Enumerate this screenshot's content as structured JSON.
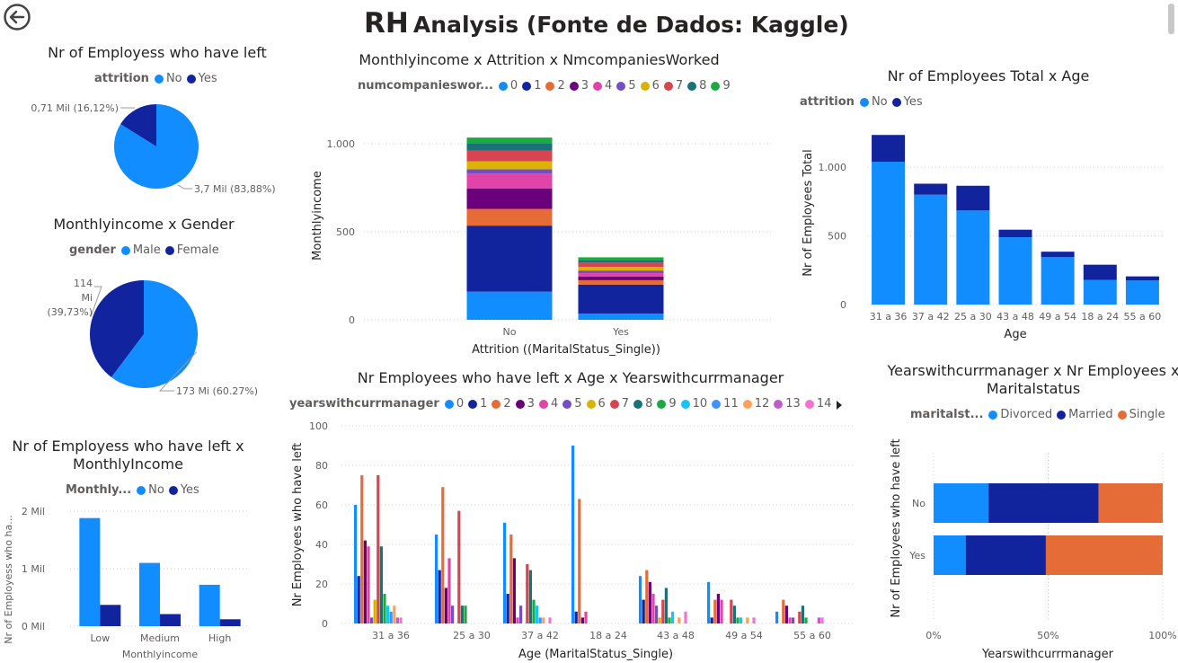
{
  "page": {
    "title_prefix": "RH",
    "title_rest": "Analysis (Fonte de Dados: Kaggle)"
  },
  "colors": {
    "c0": "#118DFF",
    "c1": "#12239E",
    "c2": "#E66C37",
    "c3": "#6B007B",
    "c4": "#E044A7",
    "c5": "#744EC2",
    "c6": "#D9B300",
    "c7": "#D64550",
    "c8": "#197278",
    "c9": "#1AAB40",
    "c10": "#15C6F4",
    "c11": "#4092FF",
    "c12": "#FFA058",
    "c13": "#BE5DC9",
    "c14": "#F472D0"
  },
  "chart_data": [
    {
      "id": "pie_attrition",
      "type": "pie",
      "title": "Nr of Employess who have left",
      "legend_title": "attrition",
      "slices": [
        {
          "name": "No",
          "value": 83.88,
          "label": "3,7 Mil (83,88%)",
          "color": "#118DFF"
        },
        {
          "name": "Yes",
          "value": 16.12,
          "label": "0,71 Mil (16,12%)",
          "color": "#12239E"
        }
      ]
    },
    {
      "id": "pie_gender",
      "type": "pie",
      "title": "Monthlyincome x Gender",
      "legend_title": "gender",
      "slices": [
        {
          "name": "Male",
          "value": 60.27,
          "label": "173 Mi (60.27%)",
          "color": "#118DFF"
        },
        {
          "name": "Female",
          "value": 39.73,
          "label": "114 Mi (39,73%)",
          "color": "#12239E"
        }
      ]
    },
    {
      "id": "bar_income_level",
      "type": "bar",
      "title": "Nr of Employess who have left x MonthlyIncome",
      "legend_title": "Monthly...",
      "xlabel": "Monthlyincome",
      "ylabel": "Nr of Employess who ha...",
      "categories": [
        "Low",
        "Medium",
        "High"
      ],
      "ylim": [
        0,
        2
      ],
      "yticks": [
        {
          "v": 0,
          "label": "0 Mil"
        },
        {
          "v": 1,
          "label": "1 Mil"
        },
        {
          "v": 2,
          "label": "2 Mil"
        }
      ],
      "series": [
        {
          "name": "No",
          "color": "#118DFF",
          "values": [
            1.88,
            1.1,
            0.72
          ]
        },
        {
          "name": "Yes",
          "color": "#12239E",
          "values": [
            0.37,
            0.21,
            0.12
          ]
        }
      ]
    },
    {
      "id": "stacked_income_attrition",
      "type": "bar",
      "title": "Monthlyincome x Attrition x NmcompaniesWorked",
      "legend_title": "numcompanieswor...",
      "xlabel": "Attrition ((MaritalStatus_Single))",
      "ylabel": "Monthlyincome",
      "categories": [
        "No",
        "Yes"
      ],
      "ylim": [
        0,
        1000
      ],
      "yticks": [
        {
          "v": 0,
          "label": "0"
        },
        {
          "v": 500,
          "label": "500"
        },
        {
          "v": 1000,
          "label": "1.000"
        }
      ],
      "series": [
        {
          "name": "0",
          "color": "#118DFF",
          "values": [
            160,
            35
          ]
        },
        {
          "name": "1",
          "color": "#12239E",
          "values": [
            375,
            165
          ]
        },
        {
          "name": "2",
          "color": "#E66C37",
          "values": [
            95,
            25
          ]
        },
        {
          "name": "3",
          "color": "#6B007B",
          "values": [
            115,
            20
          ]
        },
        {
          "name": "4",
          "color": "#E044A7",
          "values": [
            85,
            20
          ]
        },
        {
          "name": "5",
          "color": "#744EC2",
          "values": [
            25,
            15
          ]
        },
        {
          "name": "6",
          "color": "#D9B300",
          "values": [
            45,
            20
          ]
        },
        {
          "name": "7",
          "color": "#D64550",
          "values": [
            60,
            25
          ]
        },
        {
          "name": "8",
          "color": "#197278",
          "values": [
            40,
            15
          ]
        },
        {
          "name": "9",
          "color": "#1AAB40",
          "values": [
            35,
            15
          ]
        }
      ]
    },
    {
      "id": "bar_age_total",
      "type": "bar",
      "title": "Nr of Employees Total x Age",
      "legend_title": "attrition",
      "xlabel": "Age",
      "ylabel": "Nr of Employees Total",
      "categories": [
        "31 a 36",
        "37 a 42",
        "25 a 30",
        "43 a 48",
        "49 a 54",
        "18 a 24",
        "55 a 60"
      ],
      "ylim": [
        0,
        1400
      ],
      "yticks": [
        {
          "v": 0,
          "label": "0"
        },
        {
          "v": 500,
          "label": "500"
        },
        {
          "v": 1000,
          "label": "1.000"
        }
      ],
      "series": [
        {
          "name": "No",
          "color": "#118DFF",
          "values": [
            1040,
            800,
            685,
            490,
            345,
            180,
            175
          ]
        },
        {
          "name": "Yes",
          "color": "#12239E",
          "values": [
            195,
            80,
            180,
            55,
            40,
            110,
            30
          ]
        }
      ]
    },
    {
      "id": "clustered_age_manager",
      "type": "bar",
      "title": "Nr Employees who have left x Age x Yearswithcurrmanager",
      "legend_title": "yearswithcurrmanager",
      "xlabel": "Age (MaritalStatus_Single)",
      "ylabel": "Nr Employees who have left",
      "categories": [
        "31 a 36",
        "25 a 30",
        "37 a 42",
        "18 a 24",
        "43 a 48",
        "49 a 54",
        "55 a 60"
      ],
      "ylim": [
        0,
        100
      ],
      "yticks": [
        {
          "v": 0,
          "label": "0"
        },
        {
          "v": 20,
          "label": "20"
        },
        {
          "v": 40,
          "label": "40"
        },
        {
          "v": 60,
          "label": "60"
        },
        {
          "v": 80,
          "label": "80"
        },
        {
          "v": 100,
          "label": "100"
        }
      ],
      "series": [
        {
          "name": "0",
          "color": "#118DFF",
          "values": [
            60,
            45,
            51,
            90,
            24,
            21,
            6
          ]
        },
        {
          "name": "1",
          "color": "#12239E",
          "values": [
            24,
            27,
            15,
            6,
            12,
            3,
            0
          ]
        },
        {
          "name": "2",
          "color": "#E66C37",
          "values": [
            75,
            69,
            45,
            63,
            27,
            12,
            12
          ]
        },
        {
          "name": "3",
          "color": "#6B007B",
          "values": [
            42,
            18,
            33,
            3,
            21,
            15,
            9
          ]
        },
        {
          "name": "4",
          "color": "#E044A7",
          "values": [
            39,
            33,
            3,
            6,
            15,
            12,
            3
          ]
        },
        {
          "name": "5",
          "color": "#744EC2",
          "values": [
            3,
            9,
            9,
            0,
            9,
            0,
            3
          ]
        },
        {
          "name": "6",
          "color": "#D9B300",
          "values": [
            12,
            0,
            0,
            0,
            3,
            0,
            0
          ]
        },
        {
          "name": "7",
          "color": "#D64550",
          "values": [
            75,
            57,
            30,
            0,
            12,
            12,
            6
          ]
        },
        {
          "name": "8",
          "color": "#197278",
          "values": [
            39,
            9,
            27,
            0,
            18,
            9,
            9
          ]
        },
        {
          "name": "9",
          "color": "#1AAB40",
          "values": [
            15,
            9,
            12,
            0,
            3,
            3,
            3
          ]
        },
        {
          "name": "10",
          "color": "#15C6F4",
          "values": [
            9,
            0,
            9,
            0,
            6,
            3,
            0
          ]
        },
        {
          "name": "11",
          "color": "#4092FF",
          "values": [
            6,
            0,
            3,
            0,
            0,
            0,
            0
          ]
        },
        {
          "name": "12",
          "color": "#FFA058",
          "values": [
            9,
            0,
            3,
            0,
            3,
            3,
            0
          ]
        },
        {
          "name": "13",
          "color": "#BE5DC9",
          "values": [
            3,
            0,
            0,
            0,
            0,
            0,
            3
          ]
        },
        {
          "name": "14",
          "color": "#F472D0",
          "values": [
            3,
            0,
            3,
            0,
            6,
            3,
            3
          ]
        }
      ]
    },
    {
      "id": "stacked100_manager_marital",
      "type": "bar",
      "title": "Yearswithcurrmanager x Nr Employees x Maritalstatus",
      "legend_title": "maritalst...",
      "xlabel": "Yearswithcurrmanager",
      "ylabel": "Nr of Employees who have left",
      "categories": [
        "No",
        "Yes"
      ],
      "xticks": [
        "0%",
        "50%",
        "100%"
      ],
      "series": [
        {
          "name": "Divorced",
          "color": "#118DFF",
          "values": [
            24,
            14
          ]
        },
        {
          "name": "Married",
          "color": "#12239E",
          "values": [
            48,
            35
          ]
        },
        {
          "name": "Single",
          "color": "#E66C37",
          "values": [
            28,
            51
          ]
        }
      ]
    }
  ]
}
